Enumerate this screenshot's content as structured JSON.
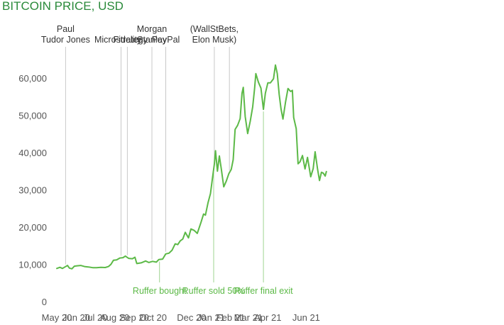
{
  "colors": {
    "accent": "#5cb947",
    "title": "#2a8a3a",
    "axis_text": "#555555",
    "event_line": "#c8c8c8",
    "ruffer_line": "#9fd491",
    "ruffer_text": "#5cb947"
  },
  "chart_data": {
    "type": "line",
    "title": "BITCOIN PRICE, USD",
    "xlabel": "",
    "ylabel": "",
    "ylim": [
      0,
      65000
    ],
    "grid": false,
    "y_ticks": [
      {
        "value": 0,
        "label": "0"
      },
      {
        "value": 10000,
        "label": "10,000"
      },
      {
        "value": 20000,
        "label": "20,000"
      },
      {
        "value": 30000,
        "label": "30,000"
      },
      {
        "value": 40000,
        "label": "40,000"
      },
      {
        "value": 50000,
        "label": "50,000"
      },
      {
        "value": 60000,
        "label": "60,000"
      }
    ],
    "x_ticks": [
      {
        "date": "2020-05-01",
        "label": "May 20"
      },
      {
        "date": "2020-06-01",
        "label": "Jun 20"
      },
      {
        "date": "2020-07-01",
        "label": "Jul 20"
      },
      {
        "date": "2020-08-01",
        "label": "Aug 20"
      },
      {
        "date": "2020-09-01",
        "label": "Sep 20"
      },
      {
        "date": "2020-10-01",
        "label": "Oct 20"
      },
      {
        "date": "2020-12-01",
        "label": "Dec 20"
      },
      {
        "date": "2021-01-01",
        "label": "Jan 21"
      },
      {
        "date": "2021-02-01",
        "label": "Feb 21"
      },
      {
        "date": "2021-03-01",
        "label": "Mar 21"
      },
      {
        "date": "2021-04-01",
        "label": "Apr 21"
      },
      {
        "date": "2021-06-01",
        "label": "Jun 21"
      }
    ],
    "series": [
      {
        "points": [
          [
            "2020-05-01",
            8900
          ],
          [
            "2020-05-06",
            9200
          ],
          [
            "2020-05-10",
            8900
          ],
          [
            "2020-05-14",
            9300
          ],
          [
            "2020-05-18",
            9700
          ],
          [
            "2020-05-21",
            9000
          ],
          [
            "2020-05-25",
            8800
          ],
          [
            "2020-05-29",
            9500
          ],
          [
            "2020-06-02",
            9600
          ],
          [
            "2020-06-08",
            9700
          ],
          [
            "2020-06-14",
            9400
          ],
          [
            "2020-06-20",
            9300
          ],
          [
            "2020-06-27",
            9100
          ],
          [
            "2020-07-03",
            9100
          ],
          [
            "2020-07-10",
            9200
          ],
          [
            "2020-07-17",
            9150
          ],
          [
            "2020-07-22",
            9400
          ],
          [
            "2020-07-26",
            10000
          ],
          [
            "2020-07-30",
            11100
          ],
          [
            "2020-08-04",
            11200
          ],
          [
            "2020-08-09",
            11700
          ],
          [
            "2020-08-14",
            11800
          ],
          [
            "2020-08-18",
            12200
          ],
          [
            "2020-08-23",
            11600
          ],
          [
            "2020-08-29",
            11500
          ],
          [
            "2020-09-02",
            11900
          ],
          [
            "2020-09-05",
            10200
          ],
          [
            "2020-09-12",
            10400
          ],
          [
            "2020-09-19",
            10900
          ],
          [
            "2020-09-24",
            10500
          ],
          [
            "2020-09-30",
            10800
          ],
          [
            "2020-10-06",
            10600
          ],
          [
            "2020-10-10",
            11300
          ],
          [
            "2020-10-16",
            11400
          ],
          [
            "2020-10-21",
            12800
          ],
          [
            "2020-10-26",
            13000
          ],
          [
            "2020-10-31",
            13800
          ],
          [
            "2020-11-05",
            15500
          ],
          [
            "2020-11-09",
            15300
          ],
          [
            "2020-11-13",
            16300
          ],
          [
            "2020-11-17",
            16800
          ],
          [
            "2020-11-21",
            18600
          ],
          [
            "2020-11-26",
            17100
          ],
          [
            "2020-11-30",
            19500
          ],
          [
            "2020-12-05",
            19100
          ],
          [
            "2020-12-10",
            18300
          ],
          [
            "2020-12-16",
            21300
          ],
          [
            "2020-12-20",
            23500
          ],
          [
            "2020-12-23",
            23200
          ],
          [
            "2020-12-27",
            26500
          ],
          [
            "2020-12-31",
            29000
          ],
          [
            "2021-01-03",
            33000
          ],
          [
            "2021-01-06",
            36800
          ],
          [
            "2021-01-08",
            40500
          ],
          [
            "2021-01-11",
            35000
          ],
          [
            "2021-01-14",
            39100
          ],
          [
            "2021-01-17",
            35800
          ],
          [
            "2021-01-21",
            30800
          ],
          [
            "2021-01-25",
            32300
          ],
          [
            "2021-01-29",
            34300
          ],
          [
            "2021-02-02",
            35500
          ],
          [
            "2021-02-05",
            38100
          ],
          [
            "2021-02-08",
            46200
          ],
          [
            "2021-02-12",
            47300
          ],
          [
            "2021-02-16",
            49100
          ],
          [
            "2021-02-19",
            55900
          ],
          [
            "2021-02-21",
            57500
          ],
          [
            "2021-02-24",
            49700
          ],
          [
            "2021-02-28",
            45100
          ],
          [
            "2021-03-04",
            48400
          ],
          [
            "2021-03-08",
            52300
          ],
          [
            "2021-03-11",
            57300
          ],
          [
            "2021-03-13",
            61200
          ],
          [
            "2021-03-17",
            58900
          ],
          [
            "2021-03-21",
            57300
          ],
          [
            "2021-03-25",
            51600
          ],
          [
            "2021-03-28",
            55900
          ],
          [
            "2021-04-01",
            58700
          ],
          [
            "2021-04-05",
            58700
          ],
          [
            "2021-04-10",
            59800
          ],
          [
            "2021-04-13",
            63500
          ],
          [
            "2021-04-16",
            61200
          ],
          [
            "2021-04-19",
            55600
          ],
          [
            "2021-04-22",
            51700
          ],
          [
            "2021-04-25",
            49000
          ],
          [
            "2021-04-29",
            53500
          ],
          [
            "2021-05-03",
            57200
          ],
          [
            "2021-05-07",
            56400
          ],
          [
            "2021-05-10",
            56700
          ],
          [
            "2021-05-12",
            49400
          ],
          [
            "2021-05-16",
            46400
          ],
          [
            "2021-05-19",
            37000
          ],
          [
            "2021-05-22",
            37500
          ],
          [
            "2021-05-26",
            39200
          ],
          [
            "2021-05-30",
            35600
          ],
          [
            "2021-06-03",
            38700
          ],
          [
            "2021-06-08",
            33500
          ],
          [
            "2021-06-12",
            35700
          ],
          [
            "2021-06-15",
            40200
          ],
          [
            "2021-06-19",
            35500
          ],
          [
            "2021-06-22",
            32500
          ],
          [
            "2021-06-25",
            34700
          ],
          [
            "2021-06-28",
            34500
          ],
          [
            "2021-07-01",
            33700
          ],
          [
            "2021-07-03",
            34900
          ]
        ]
      }
    ],
    "events": [
      {
        "date": "2020-05-15",
        "label_lines": [
          "Paul",
          "Tudor Jones"
        ]
      },
      {
        "date": "2020-08-11",
        "label_lines": [
          "Microstrategy"
        ]
      },
      {
        "date": "2020-08-21",
        "label_lines": [
          "Fidelity"
        ]
      },
      {
        "date": "2020-09-29",
        "label_lines": [
          "Morgan",
          "Stanley"
        ]
      },
      {
        "date": "2020-10-21",
        "label_lines": [
          "PayPal"
        ]
      },
      {
        "date": "2021-01-06",
        "label_lines": [
          "(WallStBets,",
          "Elon Musk)"
        ]
      },
      {
        "date": "2021-01-30",
        "label_lines": []
      }
    ],
    "ruffer_events": [
      {
        "date": "2020-10-11",
        "label": "Ruffer bought"
      },
      {
        "date": "2021-01-05",
        "label": "Ruffer sold 50%"
      },
      {
        "date": "2021-03-25",
        "label": "Ruffer final exit"
      }
    ]
  }
}
